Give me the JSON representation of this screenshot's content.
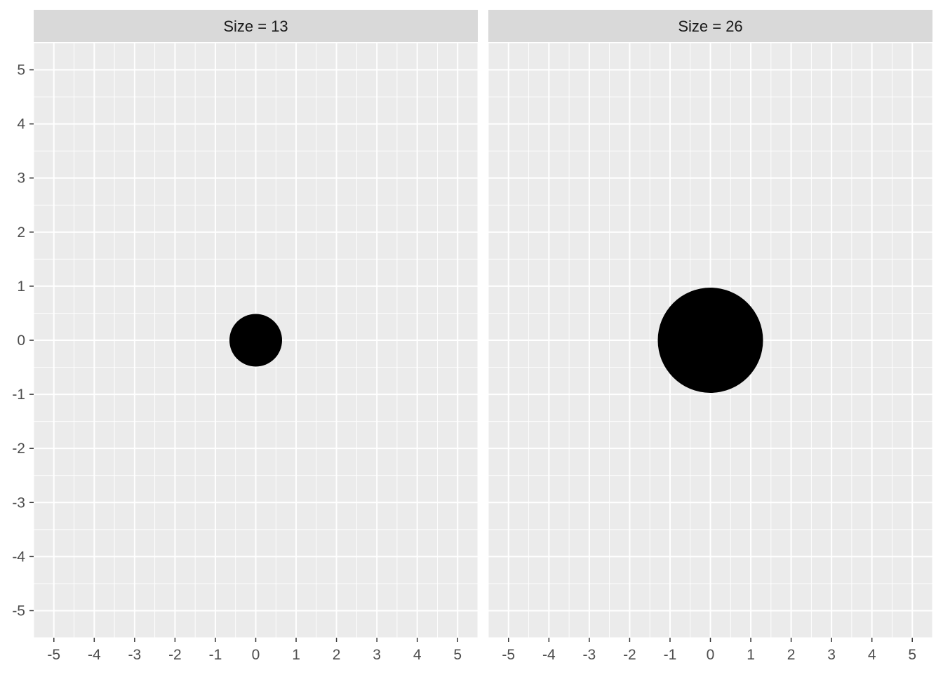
{
  "chart_data": [
    {
      "type": "scatter",
      "panel_label": "Size = 13",
      "x": [
        0
      ],
      "y": [
        0
      ],
      "point_size": 13,
      "xlim": [
        -5.5,
        5.5
      ],
      "ylim": [
        -5.5,
        5.5
      ],
      "x_ticks": [
        "-5",
        "-4",
        "-3",
        "-2",
        "-1",
        "0",
        "1",
        "2",
        "3",
        "4",
        "5"
      ],
      "y_ticks": [
        "5",
        "4",
        "3",
        "2",
        "1",
        "0",
        "-1",
        "-2",
        "-3",
        "-4",
        "-5"
      ],
      "grid": true
    },
    {
      "type": "scatter",
      "panel_label": "Size = 26",
      "x": [
        0
      ],
      "y": [
        0
      ],
      "point_size": 26,
      "xlim": [
        -5.5,
        5.5
      ],
      "ylim": [
        -5.5,
        5.5
      ],
      "x_ticks": [
        "-5",
        "-4",
        "-3",
        "-2",
        "-1",
        "0",
        "1",
        "2",
        "3",
        "4",
        "5"
      ],
      "y_ticks": [
        "5",
        "4",
        "3",
        "2",
        "1",
        "0",
        "-1",
        "-2",
        "-3",
        "-4",
        "-5"
      ],
      "grid": true
    }
  ],
  "colors": {
    "panel_background": "#ebebeb",
    "strip_background": "#d9d9d9",
    "grid": "#ffffff",
    "point": "#000000",
    "axis_text": "#4d4d4d",
    "strip_text": "#1a1a1a"
  }
}
